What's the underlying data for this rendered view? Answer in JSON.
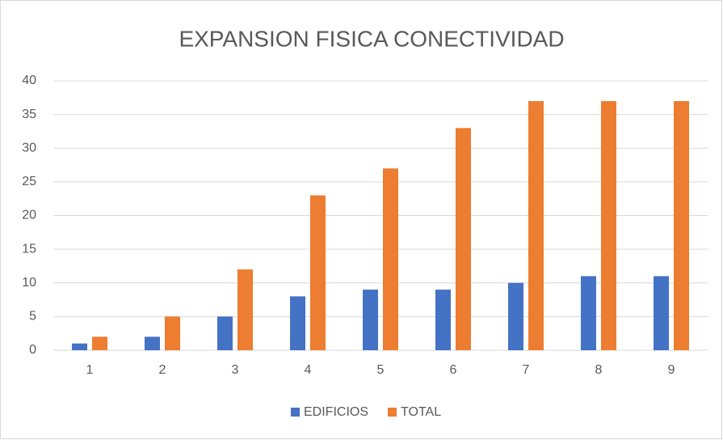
{
  "chart_data": {
    "type": "bar",
    "title": "EXPANSION FISICA CONECTIVIDAD",
    "categories": [
      "1",
      "2",
      "3",
      "4",
      "5",
      "6",
      "7",
      "8",
      "9"
    ],
    "series": [
      {
        "name": "EDIFICIOS",
        "color": "#4472c4",
        "values": [
          1,
          2,
          5,
          8,
          9,
          9,
          10,
          11,
          11
        ]
      },
      {
        "name": "TOTAL",
        "color": "#ed7d31",
        "values": [
          2,
          5,
          12,
          23,
          27,
          33,
          37,
          37,
          37
        ]
      }
    ],
    "ylim": [
      0,
      40
    ],
    "yticks": [
      0,
      5,
      10,
      15,
      20,
      25,
      30,
      35,
      40
    ],
    "grid": true,
    "legend": "bottom"
  }
}
